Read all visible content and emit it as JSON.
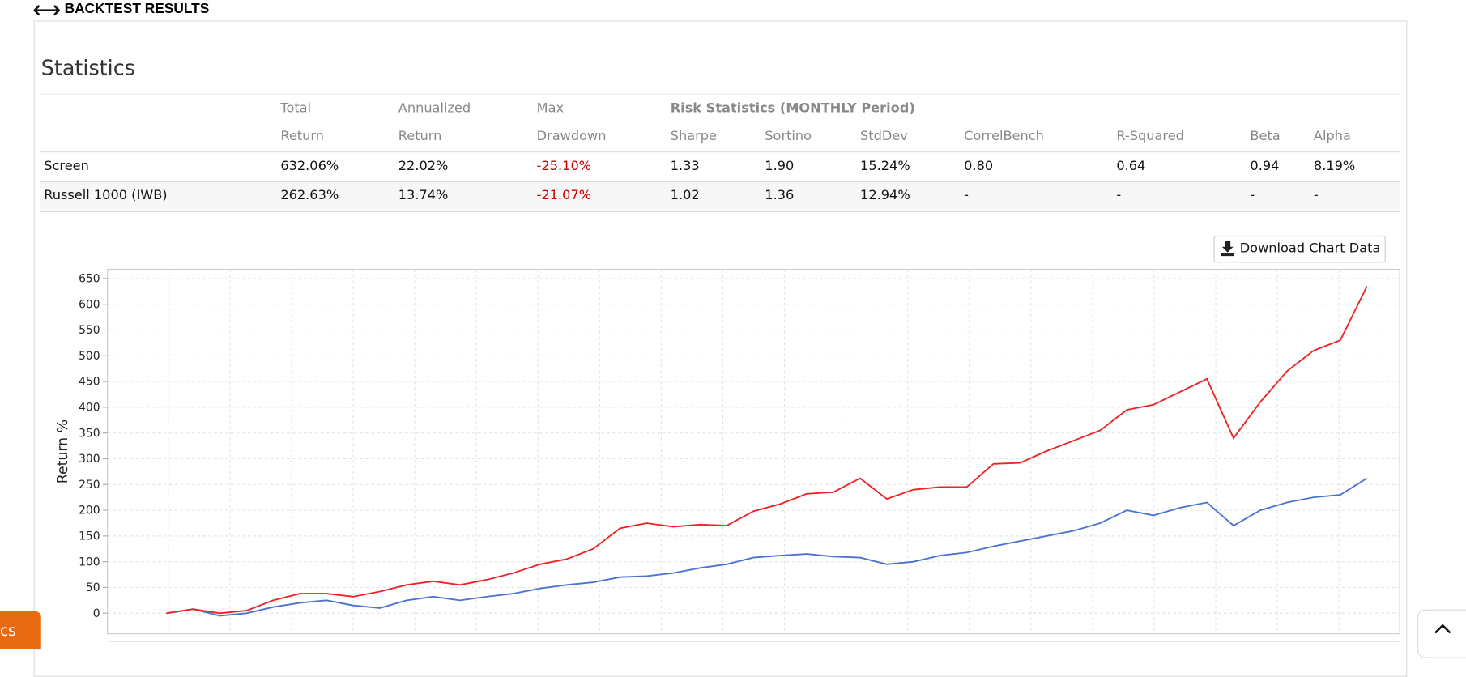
{
  "header": {
    "title": "BACKTEST RESULTS"
  },
  "statistics": {
    "title": "Statistics",
    "risk_header": "Risk Statistics (MONTHLY Period)",
    "columns": [
      [
        "Total",
        "Return"
      ],
      [
        "Annualized",
        "Return"
      ],
      [
        "Max",
        "Drawdown"
      ],
      [
        "Sharpe"
      ],
      [
        "Sortino"
      ],
      [
        "StdDev"
      ],
      [
        "CorrelBench"
      ],
      [
        "R-Squared"
      ],
      [
        "Beta"
      ],
      [
        "Alpha"
      ]
    ],
    "rows": [
      [
        "Screen",
        "632.06%",
        "22.02%",
        "-25.10%",
        "1.33",
        "1.90",
        "15.24%",
        "0.80",
        "0.64",
        "0.94",
        "8.19%"
      ],
      [
        "Russell 1000 (IWB)",
        "262.63%",
        "13.74%",
        "-21.07%",
        "1.02",
        "1.36",
        "12.94%",
        "-",
        "-",
        "-",
        "-"
      ]
    ]
  },
  "download_button": "Download Chart Data",
  "chart_data": {
    "type": "line",
    "y_label": "Return %",
    "ylim": [
      -40,
      668
    ],
    "yticks": [
      0,
      50,
      100,
      150,
      200,
      250,
      300,
      350,
      400,
      450,
      500,
      550,
      600,
      650
    ],
    "grid": true,
    "series": [
      {
        "name": "Screen",
        "color": "#ee2222",
        "values": [
          0,
          8,
          0,
          5,
          25,
          38,
          38,
          32,
          42,
          55,
          62,
          55,
          65,
          78,
          95,
          105,
          125,
          165,
          175,
          168,
          172,
          170,
          198,
          212,
          232,
          235,
          262,
          222,
          240,
          245,
          245,
          290,
          292,
          315,
          335,
          355,
          395,
          405,
          430,
          455,
          340,
          410,
          470,
          510,
          530,
          635
        ]
      },
      {
        "name": "Russell 1000 (IWB)",
        "color": "#4a72d0",
        "values": [
          0,
          8,
          -5,
          0,
          12,
          20,
          25,
          15,
          10,
          25,
          32,
          25,
          32,
          38,
          48,
          55,
          60,
          70,
          72,
          78,
          88,
          95,
          108,
          112,
          115,
          110,
          108,
          95,
          100,
          112,
          118,
          130,
          140,
          150,
          160,
          175,
          200,
          190,
          205,
          215,
          170,
          200,
          215,
          225,
          230,
          262
        ]
      }
    ]
  },
  "bottom_tab": "cs"
}
